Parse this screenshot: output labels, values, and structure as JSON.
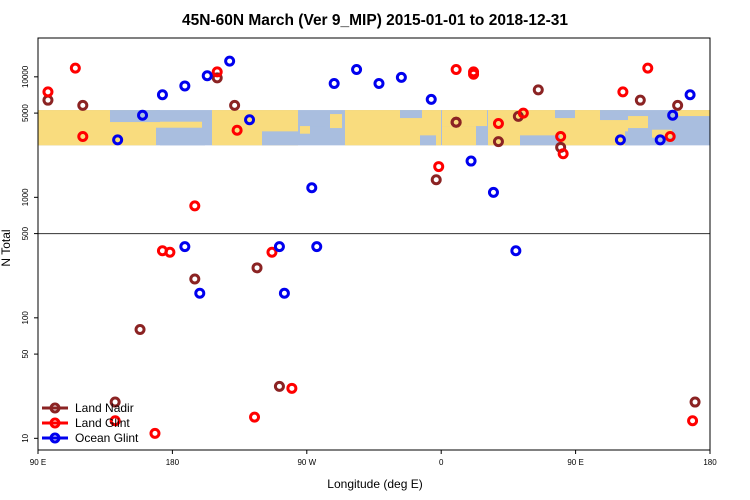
{
  "chart_data": {
    "type": "scatter",
    "title": "45N-60N March (Ver 9_MIP)   2015-01-01 to 2018-12-31",
    "xlabel": "Longitude (deg E)",
    "ylabel": "N Total",
    "x_scale": "linear",
    "y_scale": "log",
    "xlim": [
      -90,
      180
    ],
    "ylim": [
      8,
      21000
    ],
    "x_ticks": [
      {
        "value": -90,
        "label": "90 E"
      },
      {
        "value": -36,
        "label": "180"
      },
      {
        "value": 18,
        "label": "90 W"
      },
      {
        "value": 72,
        "label": "0"
      },
      {
        "value": 126,
        "label": "90 E"
      },
      {
        "value": 180,
        "label": "180"
      }
    ],
    "y_ticks": [
      {
        "value": 10,
        "label": "10"
      },
      {
        "value": 50,
        "label": "50"
      },
      {
        "value": 100,
        "label": "100"
      },
      {
        "value": 500,
        "label": "500"
      },
      {
        "value": 1000,
        "label": "1000"
      },
      {
        "value": 5000,
        "label": "5000"
      },
      {
        "value": 10000,
        "label": "10000"
      }
    ],
    "reference_line": 500,
    "map_band": {
      "y_from": 2700,
      "y_to": 5300
    },
    "legend_position": "bottom-left",
    "series": [
      {
        "name": "Land Nadir",
        "color": "#8b2323",
        "points": [
          [
            -86,
            6400
          ],
          [
            -72,
            5800
          ],
          [
            -59,
            20
          ],
          [
            -49,
            80
          ],
          [
            -27,
            210
          ],
          [
            -18,
            9800
          ],
          [
            -11,
            5800
          ],
          [
            -2,
            260
          ],
          [
            7,
            27
          ],
          [
            70,
            1400
          ],
          [
            78,
            4200
          ],
          [
            95,
            2900
          ],
          [
            103,
            4700
          ],
          [
            111,
            7800
          ],
          [
            120,
            2600
          ],
          [
            152,
            6400
          ],
          [
            167,
            5800
          ],
          [
            174,
            20
          ],
          [
            78,
            4200
          ]
        ]
      },
      {
        "name": "Land Glint",
        "color": "#ff0000",
        "points": [
          [
            -86,
            7500
          ],
          [
            -75,
            11800
          ],
          [
            -72,
            3200
          ],
          [
            -59,
            14
          ],
          [
            -43,
            11
          ],
          [
            -37,
            350
          ],
          [
            -27,
            850
          ],
          [
            -18,
            11000
          ],
          [
            -10,
            3600
          ],
          [
            -40,
            360
          ],
          [
            -3,
            15
          ],
          [
            4,
            350
          ],
          [
            12,
            26
          ],
          [
            71,
            1800
          ],
          [
            78,
            11500
          ],
          [
            85,
            11000
          ],
          [
            85,
            10500
          ],
          [
            95,
            4100
          ],
          [
            105,
            5000
          ],
          [
            120,
            3200
          ],
          [
            121,
            2300
          ],
          [
            145,
            7500
          ],
          [
            155,
            11800
          ],
          [
            164,
            3200
          ],
          [
            173,
            14
          ]
        ]
      },
      {
        "name": "Ocean Glint",
        "color": "#0000ee",
        "points": [
          [
            -58,
            3000
          ],
          [
            -48,
            4800
          ],
          [
            -40,
            7100
          ],
          [
            -31,
            8400
          ],
          [
            -22,
            10200
          ],
          [
            -13,
            13500
          ],
          [
            -5,
            4400
          ],
          [
            -25,
            160
          ],
          [
            -31,
            390
          ],
          [
            9,
            160
          ],
          [
            20,
            1200
          ],
          [
            7,
            390
          ],
          [
            22,
            390
          ],
          [
            29,
            8800
          ],
          [
            38,
            11500
          ],
          [
            47,
            8800
          ],
          [
            56,
            9900
          ],
          [
            68,
            6500
          ],
          [
            84,
            2000
          ],
          [
            93,
            1100
          ],
          [
            102,
            360
          ],
          [
            144,
            3000
          ],
          [
            160,
            3000
          ],
          [
            165,
            4800
          ],
          [
            172,
            7100
          ]
        ]
      }
    ]
  }
}
